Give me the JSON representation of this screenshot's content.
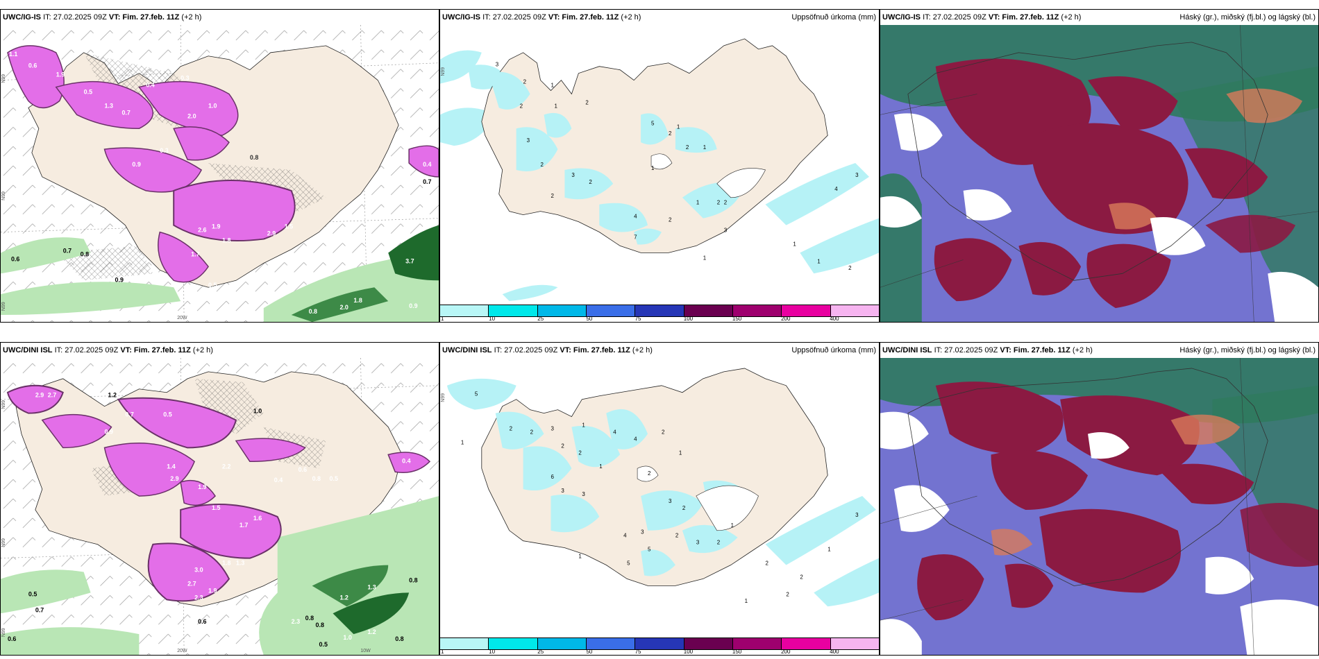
{
  "panels": [
    {
      "id": "ig-precip",
      "header_model": "UWC/IG-IS",
      "header_it": "IT: 27.02.2025 09Z",
      "header_vt_label": "VT:",
      "header_vt": "Fim. 27.feb. 11Z",
      "header_offset": "(+2 h)",
      "header_right": "",
      "lat_labels": [
        "N99",
        "N99",
        "N99"
      ],
      "lon_label": "20W",
      "value_labels": [
        "1.1",
        "0.6",
        "1.9",
        "0.5",
        "0.4",
        "1.3",
        "0.7",
        "2.0",
        "0.8",
        "0.9",
        "0.3",
        "1.0",
        "1.5",
        "2.6",
        "1.9",
        "1.8",
        "1.7",
        "2.9",
        "0.5",
        "0.7",
        "0.6",
        "0.8",
        "0.9",
        "3.7",
        "0.9",
        "0.8",
        "2.0",
        "1.8",
        "0.7",
        "0.4",
        "0.3"
      ]
    },
    {
      "id": "ig-accum",
      "header_model": "UWC/IG-IS",
      "header_it": "IT: 27.02.2025 09Z",
      "header_vt_label": "VT:",
      "header_vt": "Fim. 27.feb. 11Z",
      "header_offset": "(+2 h)",
      "header_right": "Uppsöfnuð úrkoma (mm)",
      "lat_labels": [
        "N99"
      ],
      "value_labels": [
        "3",
        "2",
        "1",
        "2",
        "1",
        "2",
        "5",
        "1",
        "2",
        "2",
        "1",
        "3",
        "2",
        "3",
        "2",
        "2",
        "1",
        "4",
        "2",
        "7",
        "2",
        "2",
        "1",
        "3",
        "1",
        "1",
        "4",
        "3",
        "1",
        "2"
      ],
      "colorbar_labels": [
        "1",
        "10",
        "25",
        "50",
        "75",
        "100",
        "150",
        "200",
        "400"
      ],
      "colorbar_colors": [
        "#b8f6f6",
        "#00e8ea",
        "#00b8e8",
        "#3a6ee8",
        "#2636b6",
        "#6a0050",
        "#9e006e",
        "#e800a0",
        "#f6b4f0"
      ]
    },
    {
      "id": "ig-cloud",
      "header_model": "UWC/IG-IS",
      "header_it": "IT: 27.02.2025 09Z",
      "header_vt_label": "VT:",
      "header_vt": "Fim. 27.feb. 11Z",
      "header_offset": "(+2 h)",
      "header_right": "Háský (gr.), miðský (fj.bl.) og lágský (bl.)"
    },
    {
      "id": "dini-precip",
      "header_model": "UWC/DINI ISL",
      "header_it": "IT: 27.02.2025 09Z",
      "header_vt_label": "VT:",
      "header_vt": "Fim. 27.feb. 11Z",
      "header_offset": "(+2 h)",
      "header_right": "",
      "lat_labels": [
        "N99",
        "N99",
        "N99"
      ],
      "lon_label": "20W",
      "lon_label2": "10W",
      "value_labels": [
        "2.9",
        "2.7",
        "1.2",
        "1.0",
        "0.7",
        "0.5",
        "1.4",
        "2.9",
        "1.9",
        "2.2",
        "0.4",
        "0.6",
        "0.8",
        "0.5",
        "1.5",
        "1.7",
        "1.6",
        "3.0",
        "2.7",
        "1.8",
        "2.3",
        "1.9",
        "1.3",
        "0.9",
        "0.6",
        "0.8",
        "0.5",
        "0.7",
        "0.8",
        "1.2",
        "1.3",
        "2.3",
        "0.8",
        "0.5",
        "1.0",
        "1.2",
        "0.8",
        "0.6",
        "0.4"
      ]
    },
    {
      "id": "dini-accum",
      "header_model": "UWC/DINI ISL",
      "header_it": "IT: 27.02.2025 09Z",
      "header_vt_label": "VT:",
      "header_vt": "Fim. 27.feb. 11Z",
      "header_offset": "(+2 h)",
      "header_right": "Uppsöfnuð úrkoma (mm)",
      "lat_labels": [
        "N99"
      ],
      "value_labels": [
        "5",
        "2",
        "1",
        "2",
        "3",
        "2",
        "1",
        "6",
        "3",
        "4",
        "2",
        "1",
        "3",
        "4",
        "2",
        "1",
        "2",
        "3",
        "5",
        "2",
        "1",
        "3",
        "2",
        "4",
        "5",
        "3",
        "2",
        "1",
        "2",
        "1",
        "2",
        "2",
        "1",
        "3"
      ],
      "colorbar_labels": [
        "1",
        "10",
        "25",
        "50",
        "75",
        "100",
        "150",
        "200",
        "400"
      ],
      "colorbar_colors": [
        "#b8f6f6",
        "#00e8ea",
        "#00b8e8",
        "#3a6ee8",
        "#2636b6",
        "#6a0050",
        "#9e006e",
        "#e800a0",
        "#f6b4f0"
      ]
    },
    {
      "id": "dini-cloud",
      "header_model": "UWC/DINI ISL",
      "header_it": "IT: 27.02.2025 09Z",
      "header_vt_label": "VT:",
      "header_vt": "Fim. 27.feb. 11Z",
      "header_offset": "(+2 h)",
      "header_right": "Háský (gr.), miðský (fj.bl.) og lágský (bl.)"
    }
  ],
  "colors": {
    "land": "#f6ece0",
    "land_dark": "#efdfcc",
    "precip_purple": "#e36ee8",
    "precip_dark": "#6a3168",
    "green_light": "#b9e6b5",
    "green_dark": "#1e6a2c",
    "cyan": "#b6f2f6",
    "cloud_red": "#8b1a42",
    "cloud_blue": "#5b5bc8",
    "cloud_green": "#2f7a5e",
    "cloud_orange": "#d87a5a"
  }
}
